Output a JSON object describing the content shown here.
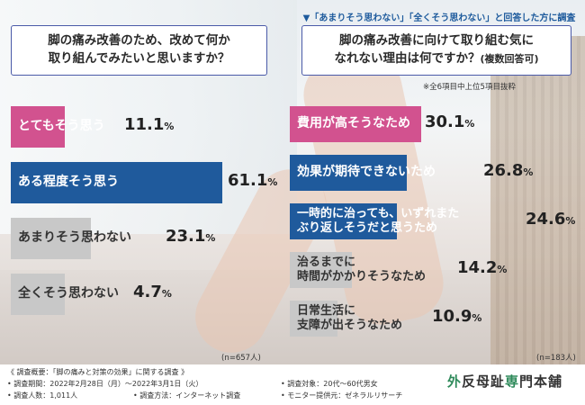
{
  "colors": {
    "pink": "#d2528f",
    "blue": "#1f5a9c",
    "gray": "#c8c8c8",
    "frame": "#4a5aa8"
  },
  "survey_header_note": "▼「あまりそう思わない」「全くそう思わない」と回答した方に調査",
  "chart_data": [
    {
      "type": "bar",
      "orientation": "horizontal",
      "title_line1": "脚の痛み改善のため、改めて何か",
      "title_line2": "取り組んでみたいと思いますか？",
      "categories": [
        "とてもそう思う",
        "ある程度そう思う",
        "あまりそう思わない",
        "全くそう思わない"
      ],
      "values": [
        11.1,
        61.1,
        23.1,
        4.7
      ],
      "value_labels": [
        "11.1",
        "61.1",
        "23.1",
        "4.7"
      ],
      "unit": "%",
      "colors": [
        "#d2528f",
        "#1f5a9c",
        "#c8c8c8",
        "#c8c8c8"
      ],
      "sample_note": "(n=657人)",
      "xlim": [
        0,
        61.1
      ]
    },
    {
      "type": "bar",
      "orientation": "horizontal",
      "title_line1": "脚の痛み改善に向けて取り組む気に",
      "title_line2": "なれない理由は何ですか？",
      "title_suffix": "(複数回答可)",
      "subnote": "※全6項目中上位5項目抜粋",
      "categories": [
        [
          "費用が高そうなため"
        ],
        [
          "効果が期待できないため"
        ],
        [
          "一時的に治っても、いずれまた",
          "ぶり返しそうだと思うため"
        ],
        [
          "治るまでに",
          "時間がかかりそうなため"
        ],
        [
          "日常生活に",
          "支障が出そうなため"
        ]
      ],
      "values": [
        30.1,
        26.8,
        24.6,
        14.2,
        10.9
      ],
      "value_labels": [
        "30.1",
        "26.8",
        "24.6",
        "14.2",
        "10.9"
      ],
      "unit": "%",
      "colors": [
        "#d2528f",
        "#1f5a9c",
        "#1f5a9c",
        "#c8c8c8",
        "#c8c8c8"
      ],
      "sample_note": "(n=183人)",
      "xlim": [
        0,
        30.1
      ]
    }
  ],
  "footer": {
    "overview": "《 調査概要：「脚の痛みと対策の効果」に関する調査 》",
    "period": "• 調査期間：2022年2月28日（月）～2022年3月1日（火）",
    "subjects": "• 調査対象：20代～60代男女",
    "count": "• 調査人数：1,011人",
    "method": "• 調査方法：インターネット調査",
    "provider": "• モニター提供元：ゼネラルリサーチ",
    "brand_a": "外",
    "brand_b": "反母趾",
    "brand_c": "専",
    "brand_d": "門本舗"
  }
}
